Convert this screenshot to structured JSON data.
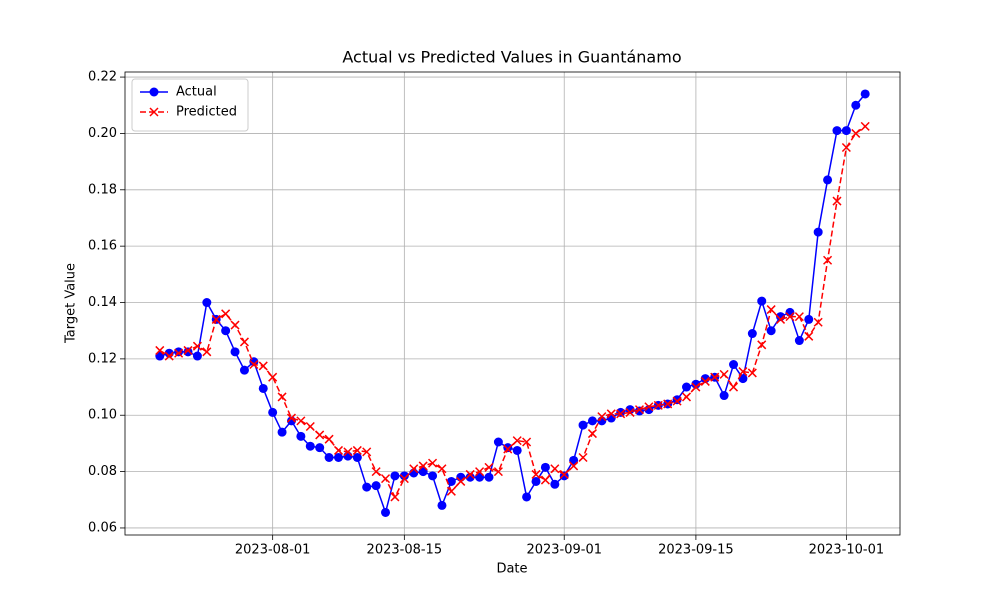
{
  "chart_data": {
    "type": "line",
    "title": "Actual vs Predicted Values in Guantánamo",
    "xlabel": "Date",
    "ylabel": "Target Value",
    "x": [
      "2023-07-20",
      "2023-07-21",
      "2023-07-22",
      "2023-07-23",
      "2023-07-24",
      "2023-07-25",
      "2023-07-26",
      "2023-07-27",
      "2023-07-28",
      "2023-07-29",
      "2023-07-30",
      "2023-07-31",
      "2023-08-01",
      "2023-08-02",
      "2023-08-03",
      "2023-08-04",
      "2023-08-05",
      "2023-08-06",
      "2023-08-07",
      "2023-08-08",
      "2023-08-09",
      "2023-08-10",
      "2023-08-11",
      "2023-08-12",
      "2023-08-13",
      "2023-08-14",
      "2023-08-15",
      "2023-08-16",
      "2023-08-17",
      "2023-08-18",
      "2023-08-19",
      "2023-08-20",
      "2023-08-21",
      "2023-08-22",
      "2023-08-23",
      "2023-08-24",
      "2023-08-25",
      "2023-08-26",
      "2023-08-27",
      "2023-08-28",
      "2023-08-29",
      "2023-08-30",
      "2023-08-31",
      "2023-09-01",
      "2023-09-02",
      "2023-09-03",
      "2023-09-04",
      "2023-09-05",
      "2023-09-06",
      "2023-09-07",
      "2023-09-08",
      "2023-09-09",
      "2023-09-10",
      "2023-09-11",
      "2023-09-12",
      "2023-09-13",
      "2023-09-14",
      "2023-09-15",
      "2023-09-16",
      "2023-09-17",
      "2023-09-18",
      "2023-09-19",
      "2023-09-20",
      "2023-09-21",
      "2023-09-22",
      "2023-09-23",
      "2023-09-24",
      "2023-09-25",
      "2023-09-26",
      "2023-09-27",
      "2023-09-28",
      "2023-09-29",
      "2023-09-30",
      "2023-10-01",
      "2023-10-02",
      "2023-10-03"
    ],
    "series": [
      {
        "name": "Actual",
        "color": "#0000ff",
        "marker": "o",
        "linestyle": "solid",
        "values": [
          0.121,
          0.122,
          0.1225,
          0.1225,
          0.121,
          0.14,
          0.134,
          0.13,
          0.1225,
          0.116,
          0.119,
          0.1095,
          0.101,
          0.094,
          0.098,
          0.0925,
          0.089,
          0.0885,
          0.085,
          0.085,
          0.0855,
          0.085,
          0.0745,
          0.075,
          0.0655,
          0.0785,
          0.0785,
          0.0795,
          0.08,
          0.0785,
          0.068,
          0.0765,
          0.078,
          0.078,
          0.078,
          0.078,
          0.0905,
          0.0885,
          0.0875,
          0.071,
          0.0765,
          0.0815,
          0.0755,
          0.0785,
          0.084,
          0.0965,
          0.098,
          0.098,
          0.099,
          0.101,
          0.102,
          0.1015,
          0.102,
          0.1035,
          0.104,
          0.1055,
          0.11,
          0.111,
          0.113,
          0.1135,
          0.107,
          0.118,
          0.113,
          0.129,
          0.1405,
          0.13,
          0.135,
          0.1365,
          0.1265,
          0.134,
          0.165,
          0.1835,
          0.201,
          0.201,
          0.21,
          0.214
        ]
      },
      {
        "name": "Predicted",
        "color": "#ff0000",
        "marker": "x",
        "linestyle": "dashed",
        "values": [
          0.123,
          0.121,
          0.122,
          0.123,
          0.1245,
          0.1225,
          0.134,
          0.136,
          0.132,
          0.126,
          0.118,
          0.1175,
          0.1135,
          0.1065,
          0.099,
          0.098,
          0.096,
          0.093,
          0.0915,
          0.0875,
          0.087,
          0.0875,
          0.087,
          0.08,
          0.0775,
          0.071,
          0.0775,
          0.081,
          0.082,
          0.083,
          0.081,
          0.073,
          0.0765,
          0.079,
          0.08,
          0.0815,
          0.08,
          0.088,
          0.091,
          0.0905,
          0.079,
          0.077,
          0.081,
          0.079,
          0.082,
          0.085,
          0.0935,
          0.0995,
          0.1005,
          0.1005,
          0.101,
          0.102,
          0.103,
          0.1035,
          0.104,
          0.105,
          0.1065,
          0.11,
          0.112,
          0.1135,
          0.1145,
          0.11,
          0.1155,
          0.115,
          0.125,
          0.1375,
          0.134,
          0.135,
          0.135,
          0.128,
          0.133,
          0.155,
          0.176,
          0.195,
          0.2,
          0.2025
        ]
      }
    ],
    "xlim": [
      "2023-07-16T07:12",
      "2023-10-06T16:48"
    ],
    "xticks": [
      "2023-08-01",
      "2023-08-15",
      "2023-09-01",
      "2023-09-15",
      "2023-10-01"
    ],
    "ylim": [
      0.0575,
      0.2218
    ],
    "yticks": [
      0.06,
      0.08,
      {
        "value": 0.1,
        "label": "0.10"
      },
      0.12,
      0.14,
      0.16,
      0.18,
      {
        "value": 0.2,
        "label": "0.20"
      },
      0.22
    ],
    "grid": true,
    "legend": "upper left"
  }
}
